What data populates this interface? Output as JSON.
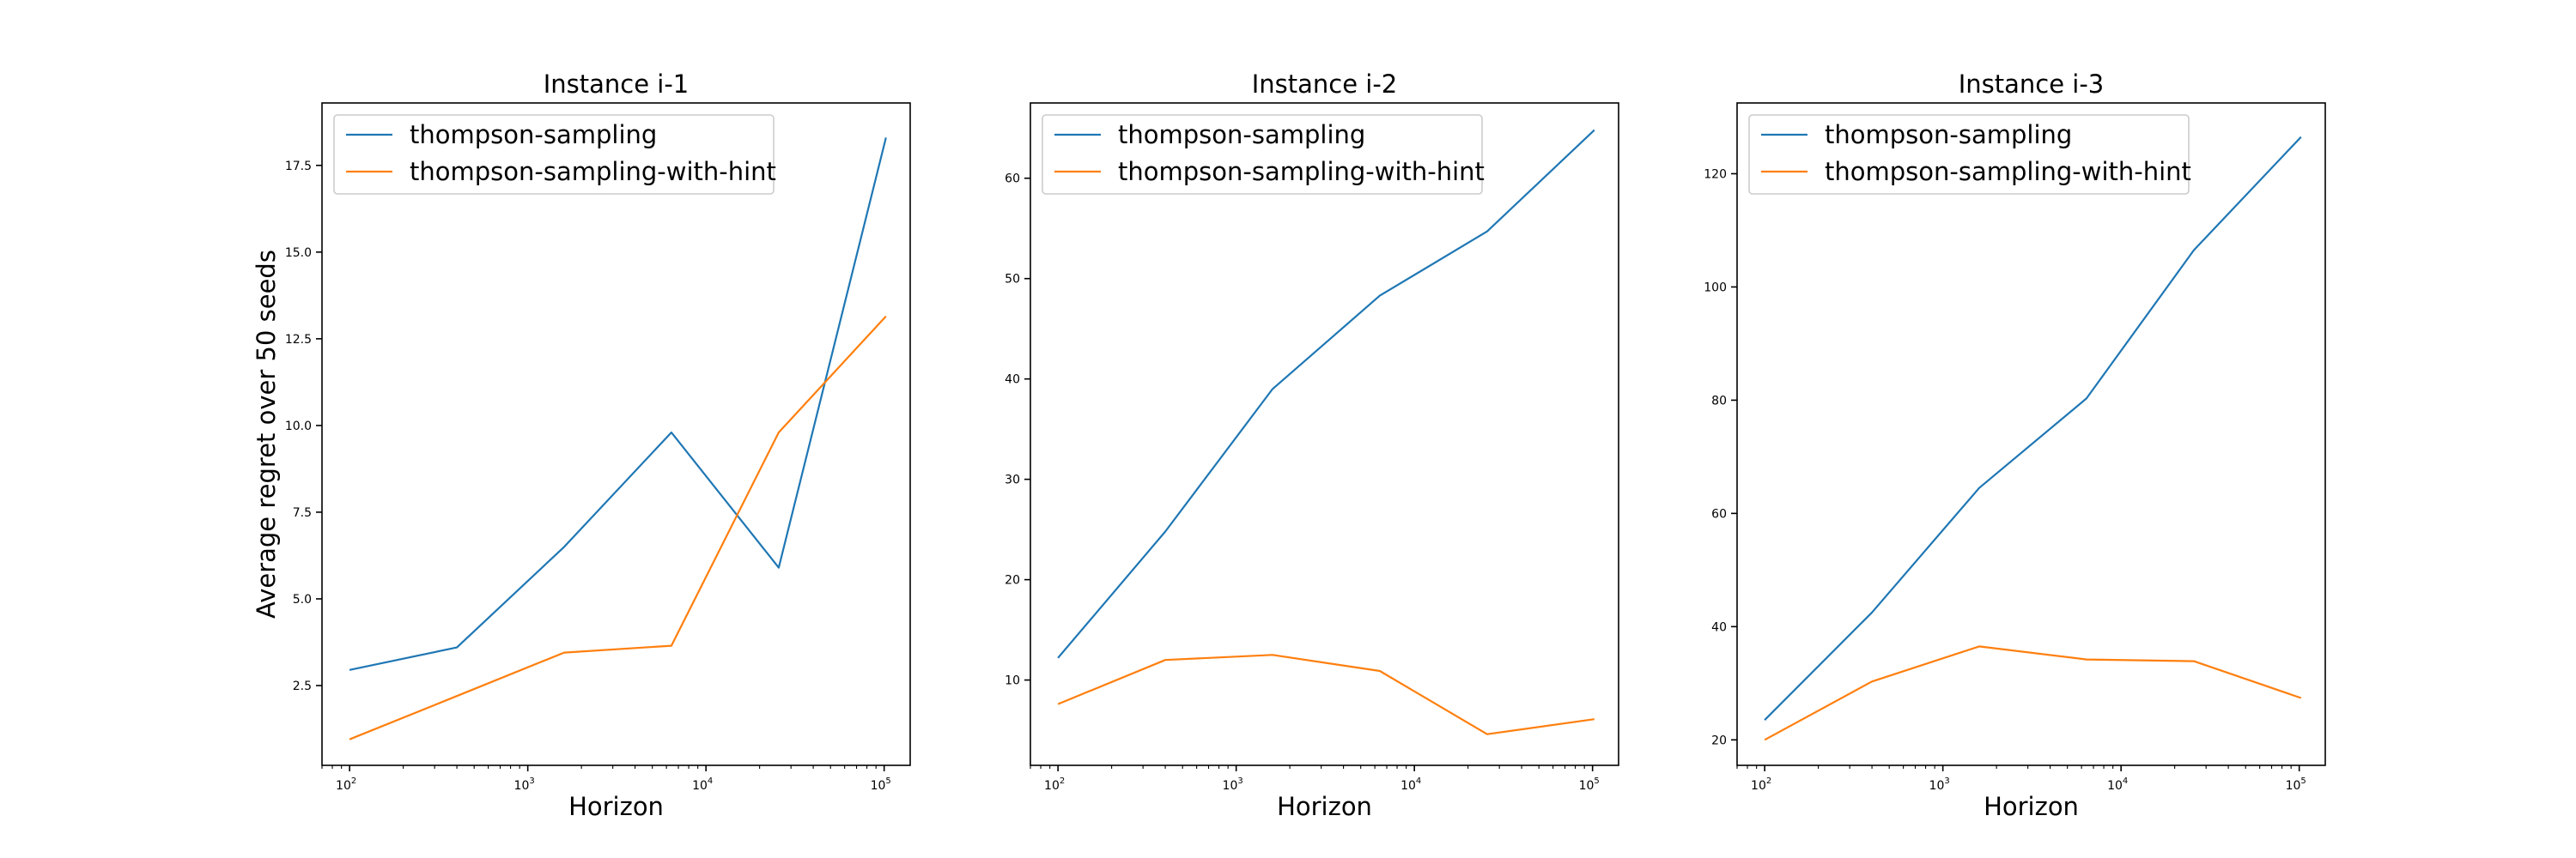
{
  "chart_data": [
    {
      "type": "line",
      "title": "Instance i-1",
      "xlabel": "Horizon",
      "ylabel": "Average regret over 50 seeds",
      "xscale": "log",
      "xlim": [
        70,
        140000
      ],
      "ylim": [
        0.2,
        19.3
      ],
      "yticks": [
        2.5,
        5.0,
        7.5,
        10.0,
        12.5,
        15.0,
        17.5
      ],
      "ytick_labels": [
        "2.5",
        "5.0",
        "7.5",
        "10.0",
        "12.5",
        "15.0",
        "17.5"
      ],
      "x": [
        100,
        400,
        1600,
        6400,
        25600,
        102400
      ],
      "series": [
        {
          "name": "thompson-sampling",
          "color": "#1f77b4",
          "values": [
            2.95,
            3.6,
            6.5,
            9.8,
            5.9,
            18.3
          ]
        },
        {
          "name": "thompson-sampling-with-hint",
          "color": "#ff7f0e",
          "values": [
            0.95,
            2.2,
            3.45,
            3.65,
            9.8,
            13.15
          ]
        }
      ],
      "legend": "upper-left",
      "grid": false
    },
    {
      "type": "line",
      "title": "Instance i-2",
      "xlabel": "Horizon",
      "ylabel": "",
      "xscale": "log",
      "xlim": [
        70,
        140000
      ],
      "ylim": [
        1.5,
        67.5
      ],
      "yticks": [
        10,
        20,
        30,
        40,
        50,
        60
      ],
      "ytick_labels": [
        "10",
        "20",
        "30",
        "40",
        "50",
        "60"
      ],
      "x": [
        100,
        400,
        1600,
        6400,
        25600,
        102400
      ],
      "series": [
        {
          "name": "thompson-sampling",
          "color": "#1f77b4",
          "values": [
            12.2,
            24.8,
            39.0,
            48.3,
            54.7,
            64.8
          ]
        },
        {
          "name": "thompson-sampling-with-hint",
          "color": "#ff7f0e",
          "values": [
            7.6,
            12.0,
            12.5,
            10.9,
            4.6,
            6.1
          ]
        }
      ],
      "legend": "upper-left",
      "grid": false
    },
    {
      "type": "line",
      "title": "Instance i-3",
      "xlabel": "Horizon",
      "ylabel": "",
      "xscale": "log",
      "xlim": [
        70,
        140000
      ],
      "ylim": [
        15.5,
        132.5
      ],
      "yticks": [
        20,
        40,
        60,
        80,
        100,
        120
      ],
      "ytick_labels": [
        "20",
        "40",
        "60",
        "80",
        "100",
        "120"
      ],
      "x": [
        100,
        400,
        1600,
        6400,
        25600,
        102400
      ],
      "series": [
        {
          "name": "thompson-sampling",
          "color": "#1f77b4",
          "values": [
            23.5,
            42.5,
            64.5,
            80.3,
            106.5,
            126.5
          ]
        },
        {
          "name": "thompson-sampling-with-hint",
          "color": "#ff7f0e",
          "values": [
            20.0,
            30.3,
            36.5,
            34.2,
            33.9,
            27.4
          ]
        }
      ],
      "legend": "upper-left",
      "grid": false
    }
  ],
  "xtick_values": [
    100,
    1000,
    10000,
    100000
  ],
  "xtick_base": "10",
  "xtick_exponents": [
    "2",
    "3",
    "4",
    "5"
  ]
}
